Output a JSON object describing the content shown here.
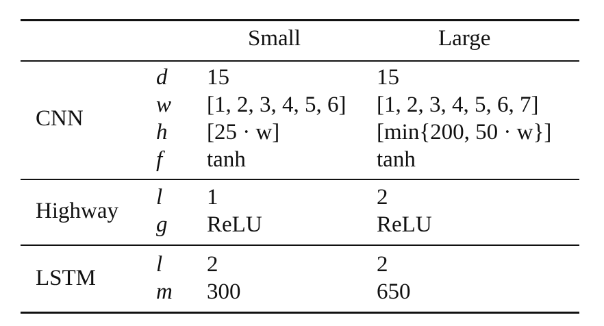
{
  "table": {
    "header": {
      "small": "Small",
      "large": "Large"
    },
    "sections": [
      {
        "name": "CNN",
        "rows": [
          {
            "param": "d",
            "small": "15",
            "large": "15"
          },
          {
            "param": "w",
            "small": "[1, 2, 3, 4, 5, 6]",
            "large": "[1, 2, 3, 4, 5, 6, 7]"
          },
          {
            "param": "h",
            "small": "[25 · w]",
            "large": "[min{200, 50 · w}]"
          },
          {
            "param": "f",
            "small": "tanh",
            "large": "tanh"
          }
        ]
      },
      {
        "name": "Highway",
        "rows": [
          {
            "param": "l",
            "small": "1",
            "large": "2"
          },
          {
            "param": "g",
            "small": "ReLU",
            "large": "ReLU"
          }
        ]
      },
      {
        "name": "LSTM",
        "rows": [
          {
            "param": "l",
            "small": "2",
            "large": "2"
          },
          {
            "param": "m",
            "small": "300",
            "large": "650"
          }
        ]
      }
    ]
  }
}
